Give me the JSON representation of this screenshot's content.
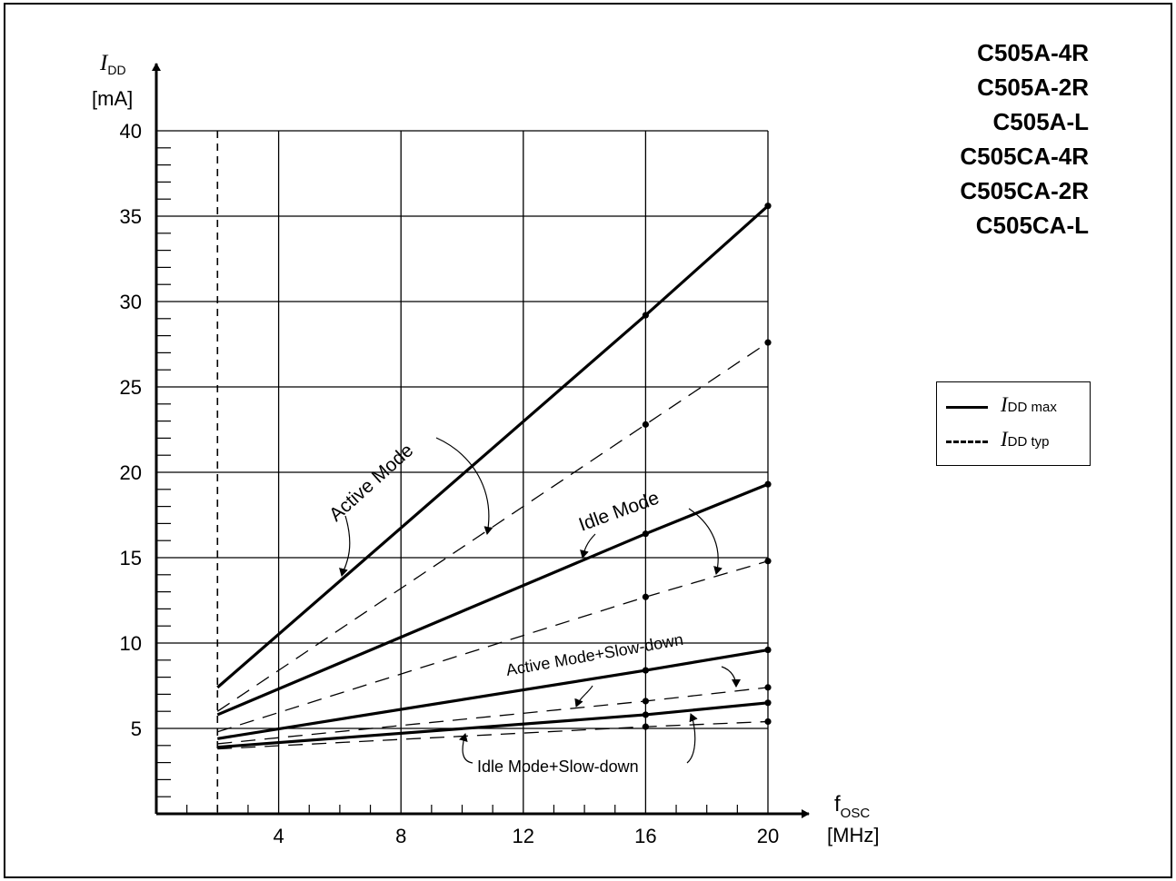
{
  "part_numbers": [
    "C505A-4R",
    "C505A-2R",
    "C505A-L",
    "C505CA-4R",
    "C505CA-2R",
    "C505CA-L"
  ],
  "legend": {
    "max": {
      "symbol": "I",
      "subscript": "DD max",
      "style": "solid"
    },
    "typ": {
      "symbol": "I",
      "subscript": "DD typ",
      "style": "dashed"
    }
  },
  "chart_data": {
    "type": "line",
    "ylabel": {
      "symbol": "I",
      "subscript": "DD",
      "unit": "[mA]"
    },
    "xlabel": {
      "symbol": "f",
      "subscript": "OSC",
      "unit": "[MHz]"
    },
    "xlim": [
      0,
      21
    ],
    "ylim": [
      0,
      40
    ],
    "x_ticks": [
      4,
      8,
      12,
      16,
      20
    ],
    "y_ticks": [
      5,
      10,
      15,
      20,
      25,
      30,
      35,
      40
    ],
    "grid": true,
    "reference_line_x": 2,
    "series": [
      {
        "name": "Active Mode",
        "kind": "max",
        "x": [
          2,
          16,
          20
        ],
        "y": [
          7.4,
          29.2,
          35.6
        ]
      },
      {
        "name": "Active Mode",
        "kind": "typ",
        "x": [
          2,
          16,
          20
        ],
        "y": [
          6.0,
          22.8,
          27.6
        ]
      },
      {
        "name": "Idle Mode",
        "kind": "max",
        "x": [
          2,
          16,
          20
        ],
        "y": [
          5.8,
          16.4,
          19.3
        ]
      },
      {
        "name": "Idle Mode",
        "kind": "typ",
        "x": [
          2,
          16,
          20
        ],
        "y": [
          4.8,
          12.7,
          14.8
        ]
      },
      {
        "name": "Active Mode+Slow-down",
        "kind": "max",
        "x": [
          2,
          16,
          20
        ],
        "y": [
          4.4,
          8.4,
          9.6
        ]
      },
      {
        "name": "Active Mode+Slow-down",
        "kind": "typ",
        "x": [
          2,
          16,
          20
        ],
        "y": [
          4.1,
          6.6,
          7.4
        ]
      },
      {
        "name": "Idle Mode+Slow-down",
        "kind": "max",
        "x": [
          2,
          16,
          20
        ],
        "y": [
          3.9,
          5.8,
          6.5
        ]
      },
      {
        "name": "Idle Mode+Slow-down",
        "kind": "typ",
        "x": [
          2,
          16,
          20
        ],
        "y": [
          3.8,
          5.1,
          5.4
        ]
      }
    ],
    "annotations": [
      "Active Mode",
      "Idle Mode",
      "Active Mode+Slow-down",
      "Idle Mode+Slow-down"
    ]
  }
}
